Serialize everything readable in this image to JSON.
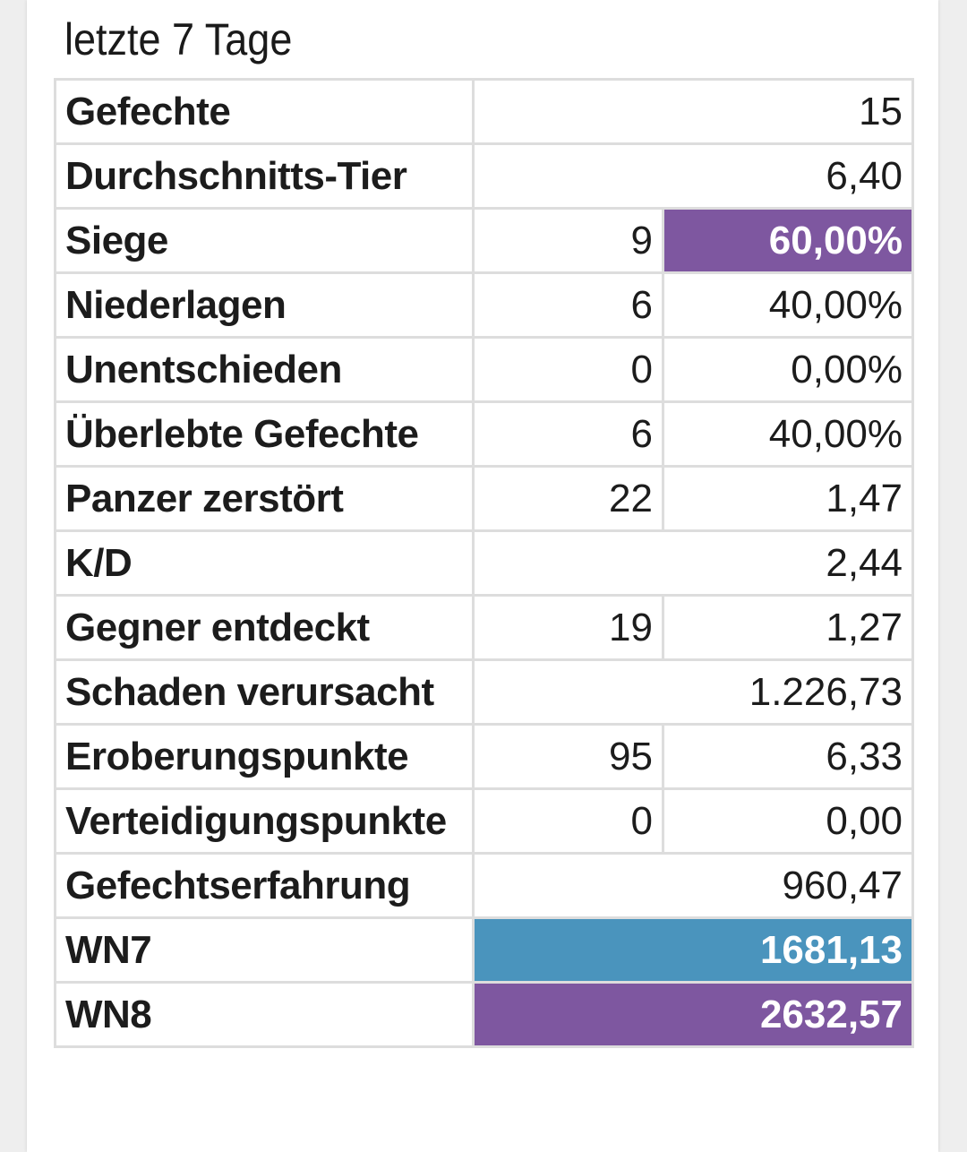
{
  "section": {
    "title": "letzte 7 Tage"
  },
  "colors": {
    "purple": "#7e57a0",
    "blue": "#4a94bd"
  },
  "rows": [
    {
      "label": "Gefechte",
      "value": "15"
    },
    {
      "label": "Durchschnitts-Tier",
      "value": "6,40"
    },
    {
      "label": "Siege",
      "count": "9",
      "value": "60,00%",
      "highlight": "purple"
    },
    {
      "label": "Niederlagen",
      "count": "6",
      "value": "40,00%"
    },
    {
      "label": "Unentschieden",
      "count": "0",
      "value": "0,00%"
    },
    {
      "label": "Überlebte Gefechte",
      "count": "6",
      "value": "40,00%"
    },
    {
      "label": "Panzer zerstört",
      "count": "22",
      "value": "1,47"
    },
    {
      "label": "K/D",
      "value": "2,44"
    },
    {
      "label": "Gegner entdeckt",
      "count": "19",
      "value": "1,27"
    },
    {
      "label": "Schaden verursacht",
      "value": "1.226,73"
    },
    {
      "label": "Eroberungspunkte",
      "count": "95",
      "value": "6,33"
    },
    {
      "label": "Verteidigungspunkte",
      "count": "0",
      "value": "0,00"
    },
    {
      "label": "Gefechtserfahrung",
      "value": "960,47"
    },
    {
      "label": "WN7",
      "value": "1681,13",
      "highlight": "blue"
    },
    {
      "label": "WN8",
      "value": "2632,57",
      "highlight": "purple"
    }
  ]
}
